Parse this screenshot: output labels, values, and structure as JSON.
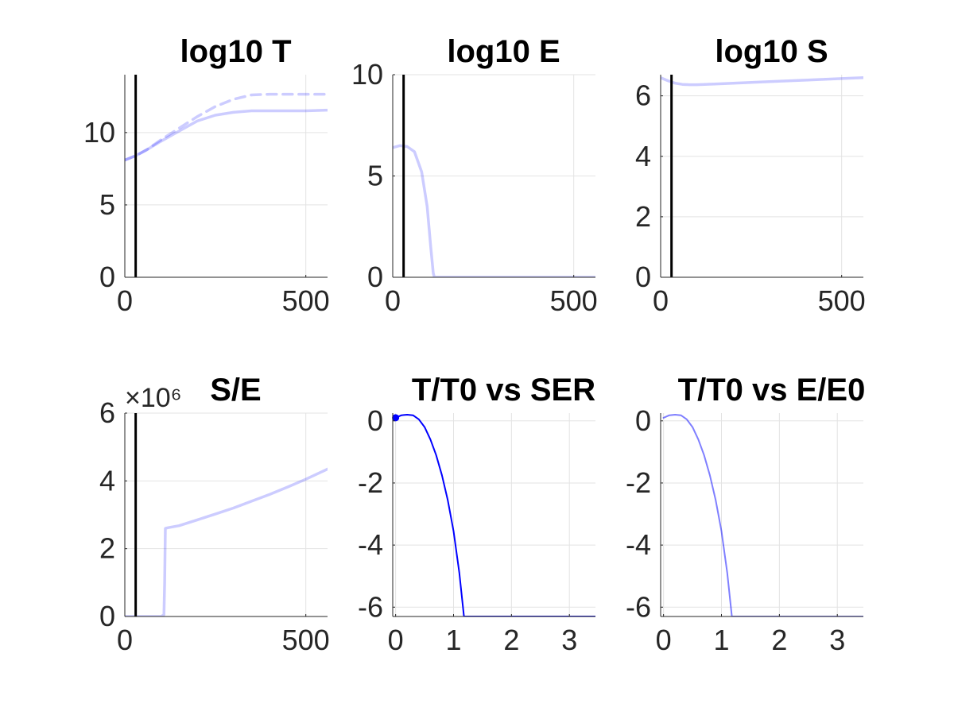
{
  "figure": {
    "background": "#ffffff",
    "grid": true
  },
  "chart_data": [
    {
      "type": "line",
      "title": "log10 T",
      "xlabel": "",
      "ylabel": "",
      "xlim": [
        0,
        560
      ],
      "ylim": [
        0,
        14
      ],
      "xticks": [
        0,
        500
      ],
      "yticks": [
        0,
        5,
        10
      ],
      "xtick_labels": [
        "0",
        "500"
      ],
      "ytick_labels": [
        "0",
        "5",
        "10"
      ],
      "vline": 30,
      "series": [
        {
          "style": "solid",
          "color": "#0000ff",
          "opacity": 0.2,
          "width": 3.5,
          "x": [
            0,
            30,
            60,
            100,
            150,
            200,
            250,
            300,
            350,
            400,
            450,
            500,
            560
          ],
          "y": [
            8.1,
            8.4,
            8.8,
            9.4,
            10.1,
            10.8,
            11.2,
            11.4,
            11.5,
            11.5,
            11.5,
            11.5,
            11.55
          ]
        },
        {
          "style": "dashed",
          "color": "#0000ff",
          "opacity": 0.2,
          "width": 3.5,
          "x": [
            0,
            30,
            60,
            100,
            150,
            200,
            250,
            300,
            350,
            400,
            450,
            500,
            560
          ],
          "y": [
            8.1,
            8.4,
            8.8,
            9.5,
            10.3,
            11.1,
            11.8,
            12.3,
            12.6,
            12.65,
            12.65,
            12.65,
            12.65
          ]
        }
      ]
    },
    {
      "type": "line",
      "title": "log10 E",
      "xlabel": "",
      "ylabel": "",
      "xlim": [
        0,
        560
      ],
      "ylim": [
        0,
        10
      ],
      "xticks": [
        0,
        500
      ],
      "yticks": [
        0,
        5,
        10
      ],
      "xtick_labels": [
        "0",
        "500"
      ],
      "ytick_labels": [
        "0",
        "5",
        "10"
      ],
      "vline": 30,
      "series": [
        {
          "style": "solid",
          "color": "#0000ff",
          "opacity": 0.2,
          "width": 3.5,
          "x": [
            0,
            20,
            40,
            60,
            80,
            95,
            105,
            112,
            115,
            200,
            300,
            400,
            500,
            560
          ],
          "y": [
            6.4,
            6.5,
            6.45,
            6.2,
            5.2,
            3.5,
            1.5,
            0.2,
            0,
            0,
            0,
            0,
            0,
            0
          ]
        }
      ]
    },
    {
      "type": "line",
      "title": "log10 S",
      "xlabel": "",
      "ylabel": "",
      "xlim": [
        0,
        560
      ],
      "ylim": [
        0,
        6.7
      ],
      "xticks": [
        0,
        500
      ],
      "yticks": [
        0,
        2,
        4,
        6
      ],
      "xtick_labels": [
        "0",
        "500"
      ],
      "ytick_labels": [
        "0",
        "2",
        "4",
        "6"
      ],
      "vline": 30,
      "series": [
        {
          "style": "solid",
          "color": "#0000ff",
          "opacity": 0.2,
          "width": 3.5,
          "x": [
            0,
            20,
            40,
            60,
            80,
            100,
            150,
            200,
            300,
            400,
            500,
            560
          ],
          "y": [
            6.6,
            6.5,
            6.42,
            6.38,
            6.37,
            6.37,
            6.39,
            6.42,
            6.47,
            6.52,
            6.57,
            6.6
          ]
        }
      ]
    },
    {
      "type": "line",
      "title": "S/E",
      "exponent_label": "×10⁶",
      "xlabel": "",
      "ylabel": "",
      "xlim": [
        0,
        560
      ],
      "ylim": [
        0,
        6
      ],
      "xticks": [
        0,
        500
      ],
      "yticks": [
        0,
        2,
        4,
        6
      ],
      "xtick_labels": [
        "0",
        "500"
      ],
      "ytick_labels": [
        "0",
        "2",
        "4",
        "6"
      ],
      "vline": 30,
      "series": [
        {
          "style": "solid",
          "color": "#0000ff",
          "opacity": 0.2,
          "width": 3.5,
          "x": [
            0,
            100,
            108,
            110,
            112,
            120,
            150,
            200,
            250,
            300,
            350,
            400,
            450,
            500,
            560
          ],
          "y": [
            0,
            0,
            0.05,
            1.0,
            2.6,
            2.62,
            2.68,
            2.85,
            3.02,
            3.2,
            3.4,
            3.6,
            3.82,
            4.05,
            4.35
          ]
        }
      ]
    },
    {
      "type": "line",
      "title": "T/T0 vs SER",
      "xlabel": "",
      "ylabel": "",
      "xlim": [
        -0.05,
        3.45
      ],
      "ylim": [
        -6.3,
        0.25
      ],
      "xticks": [
        0,
        1,
        2,
        3
      ],
      "yticks": [
        -6,
        -4,
        -2,
        0
      ],
      "xtick_labels": [
        "0",
        "1",
        "2",
        "3"
      ],
      "ytick_labels": [
        "-6",
        "-4",
        "-2",
        "0"
      ],
      "marker": {
        "x": 0,
        "y": 0.1
      },
      "series": [
        {
          "style": "solid",
          "color": "#0000ff",
          "opacity": 1.0,
          "width": 2,
          "x": [
            0,
            0.1,
            0.2,
            0.3,
            0.4,
            0.5,
            0.6,
            0.7,
            0.8,
            0.9,
            1.0,
            1.1,
            1.18,
            1.2,
            2.0,
            3.0,
            3.45
          ],
          "y": [
            0.1,
            0.18,
            0.2,
            0.18,
            0.05,
            -0.2,
            -0.6,
            -1.1,
            -1.75,
            -2.55,
            -3.55,
            -4.9,
            -6.3,
            -6.3,
            -6.3,
            -6.3,
            -6.3
          ]
        }
      ]
    },
    {
      "type": "line",
      "title": "T/T0 vs E/E0",
      "xlabel": "",
      "ylabel": "",
      "xlim": [
        -0.05,
        3.45
      ],
      "ylim": [
        -6.3,
        0.25
      ],
      "xticks": [
        0,
        1,
        2,
        3
      ],
      "yticks": [
        -6,
        -4,
        -2,
        0
      ],
      "xtick_labels": [
        "0",
        "1",
        "2",
        "3"
      ],
      "ytick_labels": [
        "-6",
        "-4",
        "-2",
        "0"
      ],
      "series": [
        {
          "style": "solid",
          "color": "#0000ff",
          "opacity": 0.5,
          "width": 2,
          "x": [
            0,
            0.1,
            0.2,
            0.3,
            0.4,
            0.5,
            0.6,
            0.7,
            0.8,
            0.9,
            1.0,
            1.1,
            1.18,
            1.2,
            2.0,
            3.0,
            3.45
          ],
          "y": [
            0.1,
            0.18,
            0.2,
            0.18,
            0.05,
            -0.2,
            -0.6,
            -1.1,
            -1.75,
            -2.55,
            -3.55,
            -4.9,
            -6.3,
            -6.3,
            -6.3,
            -6.3,
            -6.3
          ]
        }
      ]
    }
  ]
}
